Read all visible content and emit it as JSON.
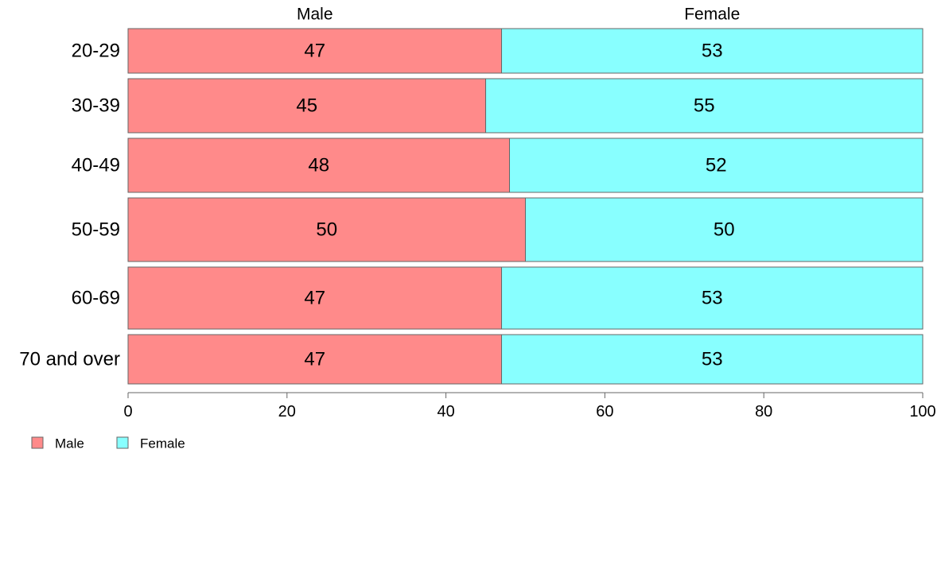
{
  "chart_data": {
    "type": "bar",
    "orientation": "horizontal",
    "stacked": true,
    "categories": [
      "20-29",
      "30-39",
      "40-49",
      "50-59",
      "60-69",
      "70 and over"
    ],
    "series": [
      {
        "name": "Male",
        "values": [
          47,
          45,
          48,
          50,
          47,
          47
        ],
        "value_labels": [
          "47",
          "45",
          "48",
          "50",
          "47",
          "47"
        ],
        "color": "#FF8A8A"
      },
      {
        "name": "Female",
        "values": [
          53,
          55,
          52,
          50,
          53,
          53
        ],
        "value_labels": [
          "53",
          "55",
          "52",
          "50",
          "53",
          "53"
        ],
        "color": "#88FFFF"
      }
    ],
    "column_headers": [
      "Male",
      "Female"
    ],
    "xlim": [
      0,
      100
    ],
    "xticks": [
      0,
      20,
      40,
      60,
      80,
      100
    ],
    "xtick_labels": [
      "0",
      "20",
      "40",
      "60",
      "80",
      "100"
    ],
    "grid": false,
    "legend": {
      "position": "bottom-left",
      "entries": [
        "Male",
        "Female"
      ]
    },
    "title": "",
    "xlabel": "",
    "ylabel": ""
  }
}
